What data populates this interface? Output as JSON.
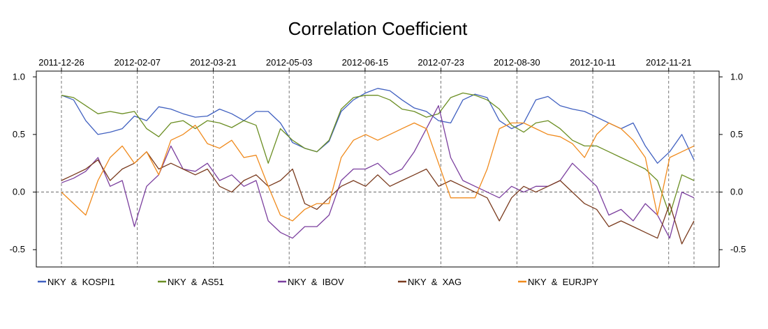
{
  "chart_data": {
    "type": "line",
    "title": "Correlation Coefficient",
    "x_tick_labels": [
      "2011-12-26",
      "2012-02-07",
      "2012-03-21",
      "2012-05-03",
      "2012-06-15",
      "2012-07-23",
      "2012-08-30",
      "2012-10-11",
      "2012-11-21"
    ],
    "y_ticks": [
      1.0,
      0.5,
      0.0,
      -0.5
    ],
    "y_tick_labels": [
      "1.0",
      "0.5",
      "0.0",
      "-0.5"
    ],
    "ylim": [
      -0.65,
      1.05
    ],
    "grid": "vertical dashed at date ticks, horizontal dashed at 0",
    "legend_position": "bottom",
    "x_index_range": [
      0,
      50
    ],
    "x_tick_positions": [
      0,
      6,
      12,
      18,
      24,
      30,
      36,
      42,
      48
    ],
    "series": [
      {
        "name": "NKY  &  KOSPI1",
        "color": "#4060c0",
        "values": [
          0.84,
          0.8,
          0.62,
          0.5,
          0.52,
          0.55,
          0.66,
          0.62,
          0.74,
          0.72,
          0.68,
          0.65,
          0.66,
          0.72,
          0.68,
          0.62,
          0.7,
          0.7,
          0.6,
          0.43,
          0.38,
          0.35,
          0.44,
          0.7,
          0.8,
          0.86,
          0.9,
          0.88,
          0.8,
          0.73,
          0.7,
          0.62,
          0.6,
          0.8,
          0.85,
          0.82,
          0.62,
          0.55,
          0.6,
          0.8,
          0.83,
          0.75,
          0.72,
          0.7,
          0.65,
          0.6,
          0.55,
          0.6,
          0.4,
          0.25,
          0.35,
          0.5,
          0.28
        ]
      },
      {
        "name": "NKY  &  AS51",
        "color": "#6b8e23",
        "values": [
          0.84,
          0.82,
          0.75,
          0.68,
          0.7,
          0.68,
          0.7,
          0.55,
          0.48,
          0.6,
          0.62,
          0.55,
          0.62,
          0.6,
          0.56,
          0.62,
          0.58,
          0.25,
          0.55,
          0.45,
          0.38,
          0.35,
          0.45,
          0.72,
          0.82,
          0.84,
          0.84,
          0.8,
          0.72,
          0.7,
          0.65,
          0.68,
          0.82,
          0.86,
          0.84,
          0.8,
          0.72,
          0.58,
          0.52,
          0.6,
          0.62,
          0.55,
          0.45,
          0.4,
          0.4,
          0.35,
          0.3,
          0.25,
          0.2,
          0.1,
          -0.2,
          0.15,
          0.1
        ]
      },
      {
        "name": "NKY  &  IBOV",
        "color": "#7b3f9e",
        "values": [
          0.08,
          0.12,
          0.18,
          0.3,
          0.05,
          0.1,
          -0.3,
          0.05,
          0.15,
          0.4,
          0.2,
          0.18,
          0.25,
          0.1,
          0.15,
          0.05,
          0.1,
          -0.25,
          -0.35,
          -0.4,
          -0.3,
          -0.3,
          -0.2,
          0.1,
          0.2,
          0.2,
          0.25,
          0.15,
          0.2,
          0.35,
          0.55,
          0.75,
          0.3,
          0.1,
          0.05,
          0.0,
          -0.05,
          0.05,
          0.0,
          0.05,
          0.05,
          0.1,
          0.25,
          0.15,
          0.05,
          -0.2,
          -0.15,
          -0.25,
          -0.1,
          -0.2,
          -0.4,
          0.0,
          -0.05
        ]
      },
      {
        "name": "NKY  &  XAG",
        "color": "#7a3b1e",
        "values": [
          0.1,
          0.15,
          0.2,
          0.28,
          0.1,
          0.2,
          0.25,
          0.35,
          0.2,
          0.25,
          0.2,
          0.15,
          0.2,
          0.05,
          0.0,
          0.1,
          0.15,
          0.05,
          0.1,
          0.2,
          -0.1,
          -0.15,
          -0.05,
          0.05,
          0.1,
          0.05,
          0.15,
          0.05,
          0.1,
          0.15,
          0.2,
          0.05,
          0.1,
          0.05,
          0.0,
          -0.05,
          -0.25,
          -0.05,
          0.05,
          0.0,
          0.05,
          0.1,
          0.0,
          -0.1,
          -0.15,
          -0.3,
          -0.25,
          -0.3,
          -0.35,
          -0.4,
          -0.1,
          -0.45,
          -0.25
        ]
      },
      {
        "name": "NKY  &  EURJPY",
        "color": "#f08a1c",
        "values": [
          0.0,
          -0.1,
          -0.2,
          0.1,
          0.3,
          0.4,
          0.25,
          0.35,
          0.15,
          0.45,
          0.5,
          0.58,
          0.42,
          0.38,
          0.45,
          0.3,
          0.32,
          0.05,
          -0.2,
          -0.25,
          -0.15,
          -0.1,
          -0.1,
          0.3,
          0.45,
          0.5,
          0.45,
          0.5,
          0.55,
          0.6,
          0.55,
          0.25,
          -0.05,
          -0.05,
          -0.05,
          0.2,
          0.55,
          0.6,
          0.6,
          0.55,
          0.5,
          0.48,
          0.42,
          0.3,
          0.5,
          0.6,
          0.55,
          0.45,
          0.3,
          -0.2,
          0.3,
          0.35,
          0.4
        ]
      }
    ]
  }
}
